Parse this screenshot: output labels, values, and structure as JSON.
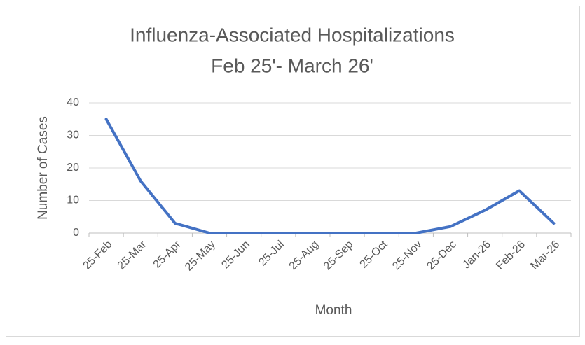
{
  "chart_data": {
    "type": "line",
    "title": "Influenza-Associated Hospitalizations",
    "subtitle": "Feb 25'- March 26'",
    "x_label": "Month",
    "y_label": "Number of Cases",
    "categories": [
      "25-Feb",
      "25-Mar",
      "25-Apr",
      "25-May",
      "25-Jun",
      "25-Jul",
      "25-Aug",
      "25-Sep",
      "25-Oct",
      "25-Nov",
      "25-Dec",
      "Jan-26",
      "Feb-26",
      "Mar-26"
    ],
    "series": [
      {
        "name": "Number of Cases",
        "color": "#4472c4",
        "values": [
          35,
          16,
          3,
          0,
          0,
          0,
          0,
          0,
          0,
          0,
          2,
          7,
          13,
          3
        ]
      }
    ],
    "ylim": [
      0,
      40
    ],
    "yticks": [
      0,
      10,
      20,
      30,
      40
    ],
    "grid": true
  }
}
